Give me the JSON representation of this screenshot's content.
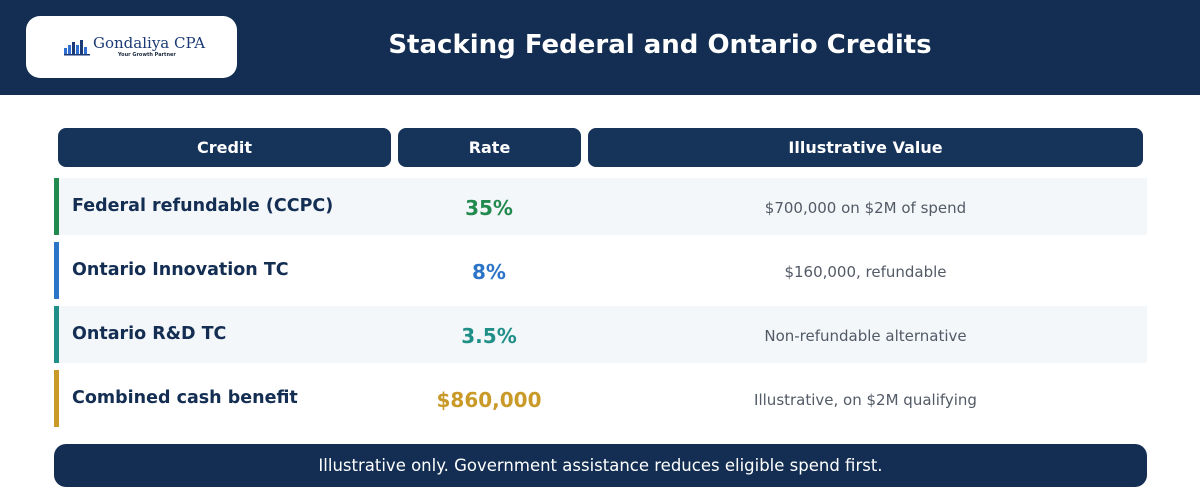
{
  "logo": {
    "name": "Gondaliya CPA",
    "tagline": "Your Growth Partner",
    "color": "#1b3a75"
  },
  "title": "Stacking Federal and Ontario Credits",
  "table": {
    "headers": [
      "Credit",
      "Rate",
      "Illustrative Value"
    ],
    "rows": [
      {
        "credit": "Federal refundable (CCPC)",
        "rate": "35%",
        "value": "$700,000 on $2M of spend",
        "accent": "#238a4f"
      },
      {
        "credit": "Ontario Innovation TC",
        "rate": "8%",
        "value": "$160,000, refundable",
        "accent": "#2b74c7"
      },
      {
        "credit": "Ontario R&D TC",
        "rate": "3.5%",
        "value": "Non-refundable alternative",
        "accent": "#1f8f88"
      },
      {
        "credit": "Combined cash benefit",
        "rate": "$860,000",
        "value": "Illustrative, on $2M qualifying",
        "accent": "#c99a28"
      }
    ]
  },
  "note": "Illustrative only. Government assistance reduces eligible spend first.",
  "colors": {
    "header_bg": "#132e52",
    "column_header_bg": "#16335a",
    "row_shade": "#f4f7fa"
  }
}
